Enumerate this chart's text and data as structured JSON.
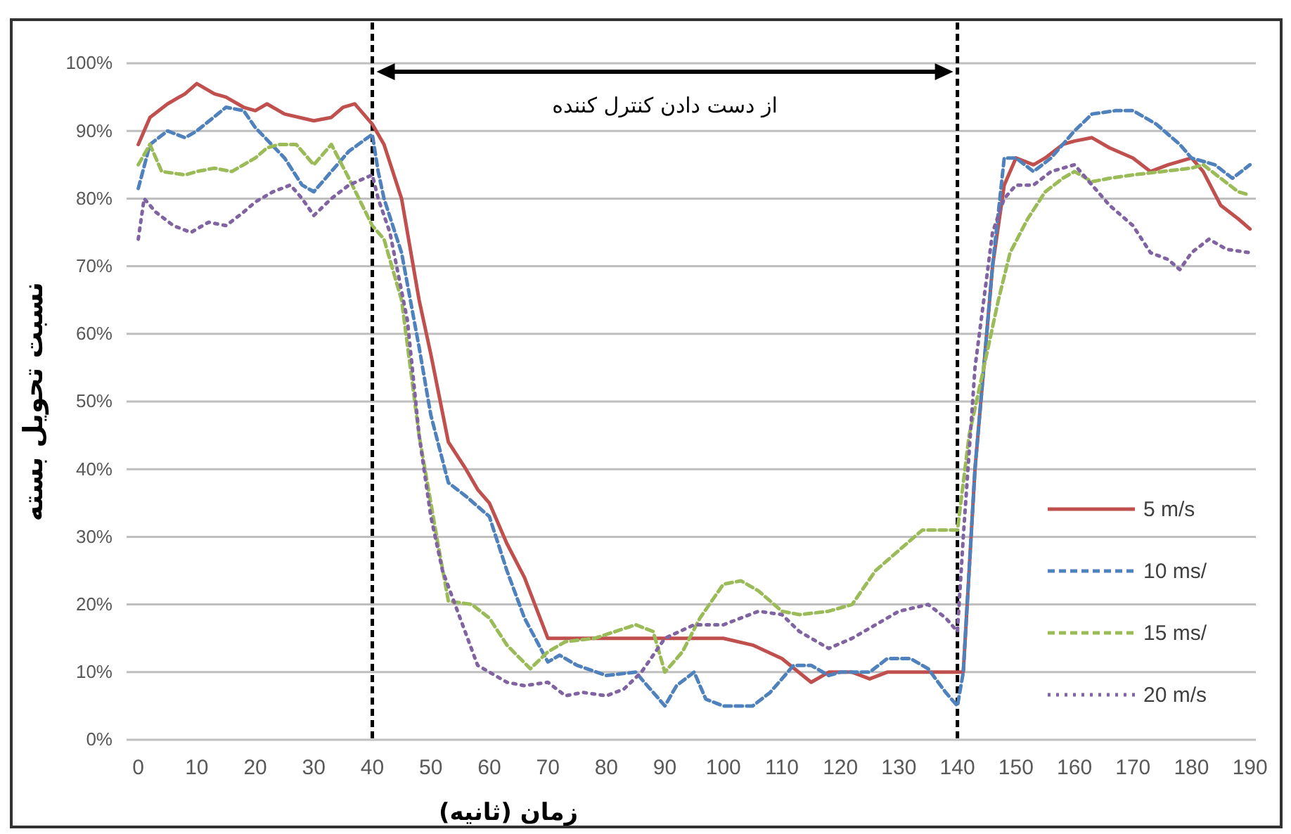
{
  "chart_data": {
    "type": "line",
    "xlabel": "زمان (ثانیه)",
    "ylabel": "نسبت تحویل بسته",
    "annotations": [
      "از دست دادن کنترل کننده"
    ],
    "xlim": [
      -2,
      191
    ],
    "xticks": [
      0,
      10,
      20,
      30,
      40,
      50,
      60,
      70,
      80,
      90,
      100,
      110,
      120,
      130,
      140,
      150,
      160,
      170,
      180,
      190
    ],
    "ylim": [
      0,
      100
    ],
    "yticks": [
      {
        "value": 0,
        "label": "0%"
      },
      {
        "value": 10,
        "label": "10%"
      },
      {
        "value": 20,
        "label": "20%"
      },
      {
        "value": 30,
        "label": "30%"
      },
      {
        "value": 40,
        "label": "40%"
      },
      {
        "value": 50,
        "label": "50%"
      },
      {
        "value": 60,
        "label": "60%"
      },
      {
        "value": 70,
        "label": "70%"
      },
      {
        "value": 80,
        "label": "80%"
      },
      {
        "value": 90,
        "label": "90%"
      },
      {
        "value": 100,
        "label": "100%"
      }
    ],
    "grid": "y",
    "legend": "right",
    "marker": "none",
    "ref_lines": [
      {
        "axis": "x",
        "value": 40,
        "color": "#000000",
        "line_style": "dashed"
      },
      {
        "axis": "x",
        "value": 140,
        "color": "#000000",
        "line_style": "dashed"
      }
    ],
    "series": [
      {
        "name": "5 m/s",
        "color": "#c0504d",
        "line_style": "solid",
        "x": [
          0,
          2,
          5,
          8,
          10,
          13,
          15,
          18,
          20,
          22,
          25,
          30,
          33,
          35,
          37,
          40,
          42,
          45,
          48,
          50,
          53,
          56,
          58,
          60,
          63,
          66,
          70,
          80,
          100,
          105,
          110,
          115,
          118,
          122,
          125,
          128,
          140,
          141,
          143,
          146,
          148,
          150,
          153,
          155,
          158,
          160,
          163,
          166,
          170,
          173,
          176,
          180,
          182,
          185,
          188,
          190
        ],
        "values": [
          88,
          92,
          94,
          95.5,
          97,
          95.5,
          95,
          93.5,
          93,
          94,
          92.5,
          91.5,
          92,
          93.5,
          94,
          91,
          88,
          80,
          65,
          57,
          44,
          40,
          37,
          35,
          29,
          24,
          15,
          15,
          15,
          14,
          12,
          8.5,
          10,
          10,
          9,
          10,
          10,
          10,
          40,
          70,
          82,
          86,
          85,
          86,
          88,
          88.5,
          89,
          87.5,
          86,
          84,
          85,
          86,
          84,
          79,
          77,
          75.5
        ]
      },
      {
        "name": "10 ms/",
        "color": "#4f81bd",
        "line_style": "dashed",
        "x": [
          0,
          2,
          5,
          8,
          10,
          15,
          18,
          20,
          25,
          28,
          30,
          33,
          36,
          40,
          41,
          42,
          45,
          48,
          50,
          53,
          56,
          60,
          63,
          66,
          70,
          72,
          75,
          80,
          85,
          88,
          90,
          92,
          95,
          97,
          100,
          105,
          108,
          112,
          115,
          118,
          120,
          125,
          128,
          132,
          135,
          138,
          140,
          141,
          143,
          146,
          148,
          150,
          153,
          156,
          160,
          163,
          167,
          170,
          174,
          178,
          180,
          184,
          187,
          190
        ],
        "values": [
          81.5,
          88,
          90,
          89,
          90,
          93.5,
          93,
          90.5,
          86,
          82,
          81,
          84,
          87,
          89.5,
          84,
          80,
          72,
          58,
          48,
          38,
          36,
          33,
          25,
          18,
          11.5,
          12.5,
          11,
          9.5,
          10,
          7,
          5,
          8,
          10,
          6,
          5,
          5,
          7,
          11,
          11,
          9.5,
          10,
          10,
          12,
          12,
          10.5,
          7,
          5,
          10,
          40,
          70,
          86,
          86,
          84,
          86,
          90,
          92.5,
          93,
          93,
          91,
          88,
          86,
          85,
          83,
          85
        ]
      },
      {
        "name": "15 ms/",
        "color": "#9bbb59",
        "line_style": "dashed",
        "x": [
          0,
          2,
          4,
          8,
          10,
          13,
          16,
          18,
          20,
          22,
          24,
          27,
          30,
          33,
          36,
          40,
          42,
          45,
          48,
          51,
          53,
          57,
          60,
          63,
          67,
          70,
          73,
          78,
          85,
          88,
          90,
          93,
          96,
          100,
          103,
          106,
          110,
          113,
          118,
          122,
          126,
          130,
          134,
          138,
          140,
          142,
          145,
          147,
          149,
          152,
          155,
          158,
          160,
          163,
          166,
          170,
          175,
          180,
          182,
          185,
          188,
          190
        ],
        "values": [
          85,
          88,
          84,
          83.5,
          84,
          84.5,
          84,
          85,
          86,
          87.5,
          88,
          88,
          85,
          88,
          83,
          76,
          74,
          65,
          45,
          30,
          20.5,
          20,
          18,
          14,
          10.5,
          13,
          14.5,
          15,
          17,
          16,
          10,
          13,
          18,
          23,
          23.5,
          22,
          19,
          18.5,
          19,
          20,
          25,
          28,
          31,
          31,
          31,
          45,
          57,
          65,
          72,
          77,
          81,
          83,
          84,
          82.5,
          83,
          83.5,
          84,
          84.5,
          85,
          83,
          81,
          80.5
        ]
      },
      {
        "name": "20 m/s",
        "color": "#8064a2",
        "line_style": "dotted",
        "x": [
          0,
          1,
          3,
          6,
          9,
          12,
          15,
          18,
          20,
          23,
          26,
          28,
          30,
          33,
          36,
          40,
          41,
          43,
          46,
          48,
          50,
          52,
          55,
          58,
          60,
          63,
          66,
          70,
          73,
          76,
          80,
          83,
          86,
          90,
          95,
          100,
          103,
          106,
          110,
          113,
          115,
          118,
          122,
          126,
          130,
          135,
          138,
          140,
          141,
          143,
          146,
          148,
          150,
          153,
          156,
          160,
          163,
          166,
          170,
          173,
          176,
          178,
          180,
          183,
          186,
          190
        ],
        "values": [
          74,
          80,
          78,
          76,
          75,
          76.5,
          76,
          78,
          79.5,
          81,
          82,
          80,
          77.5,
          80,
          82,
          83.5,
          80,
          75,
          62,
          45,
          33,
          25,
          18,
          11,
          10,
          8.5,
          8,
          8.5,
          6.5,
          7,
          6.5,
          7.5,
          10,
          15,
          17,
          17,
          18,
          19,
          18.5,
          16,
          15,
          13.5,
          15,
          17,
          19,
          20,
          18,
          16,
          30,
          55,
          75,
          80,
          82,
          82,
          84,
          85,
          82,
          79,
          76,
          72,
          71,
          69.5,
          72,
          74,
          72.5,
          72
        ]
      }
    ]
  }
}
